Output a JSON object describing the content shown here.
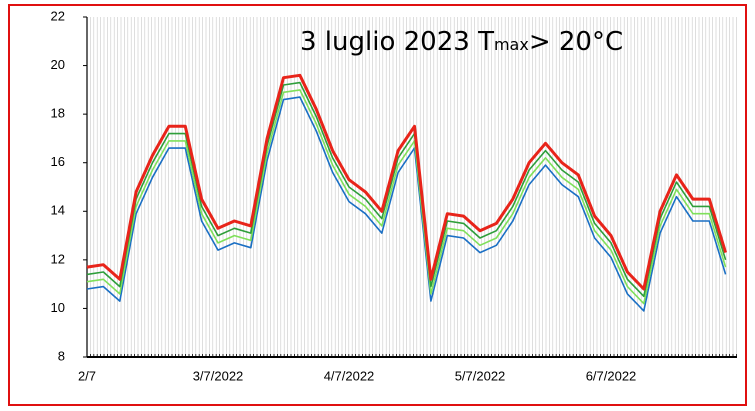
{
  "chart_data": {
    "type": "line",
    "annotation": {
      "parts": [
        "3 luglio 2023 T",
        "max",
        "> 20°C"
      ]
    },
    "categories": [
      "2/7",
      null,
      null,
      null,
      null,
      null,
      null,
      null,
      "3/7/2022",
      null,
      null,
      null,
      null,
      null,
      null,
      null,
      "4/7/2022",
      null,
      null,
      null,
      null,
      null,
      null,
      null,
      "5/7/2022",
      null,
      null,
      null,
      null,
      null,
      null,
      null,
      "6/7/2022",
      null,
      null,
      null,
      null,
      null,
      null,
      null
    ],
    "series": [
      {
        "color": "#1a6fc4",
        "values": [
          10.8,
          10.9,
          10.3,
          13.9,
          15.4,
          16.6,
          16.6,
          13.6,
          12.4,
          12.7,
          12.5,
          16.1,
          18.6,
          18.7,
          17.3,
          15.6,
          14.4,
          13.9,
          13.1,
          15.6,
          16.6,
          10.3,
          13.0,
          12.9,
          12.3,
          12.6,
          13.6,
          15.1,
          15.9,
          15.1,
          14.6,
          12.9,
          12.1,
          10.6,
          9.9,
          13.1,
          14.6,
          13.6,
          13.6,
          11.4
        ]
      },
      {
        "color": "#7fe05a",
        "values": [
          11.1,
          11.2,
          10.6,
          14.2,
          15.7,
          16.9,
          16.9,
          13.9,
          12.7,
          13.0,
          12.8,
          16.4,
          18.9,
          19.0,
          17.6,
          15.9,
          14.7,
          14.2,
          13.4,
          15.9,
          16.9,
          10.6,
          13.3,
          13.2,
          12.6,
          12.9,
          13.9,
          15.4,
          16.2,
          15.4,
          14.9,
          13.2,
          12.4,
          10.9,
          10.2,
          13.4,
          14.9,
          13.9,
          13.9,
          11.7
        ]
      },
      {
        "color": "#2e9e3a",
        "values": [
          11.4,
          11.5,
          10.9,
          14.5,
          16.0,
          17.2,
          17.2,
          14.2,
          13.0,
          13.3,
          13.1,
          16.7,
          19.2,
          19.3,
          17.9,
          16.2,
          15.0,
          14.5,
          13.7,
          16.2,
          17.2,
          10.9,
          13.6,
          13.5,
          12.9,
          13.2,
          14.2,
          15.7,
          16.5,
          15.7,
          15.2,
          13.5,
          12.7,
          11.2,
          10.5,
          13.7,
          15.2,
          14.2,
          14.2,
          12.0
        ]
      },
      {
        "color": "#e8241a",
        "values": [
          11.7,
          11.8,
          11.2,
          14.8,
          16.3,
          17.5,
          17.5,
          14.5,
          13.3,
          13.6,
          13.4,
          17.0,
          19.5,
          19.6,
          18.2,
          16.5,
          15.3,
          14.8,
          14.0,
          16.5,
          17.5,
          11.2,
          13.9,
          13.8,
          13.2,
          13.5,
          14.5,
          16.0,
          16.8,
          16.0,
          15.5,
          13.8,
          13.0,
          11.5,
          10.8,
          14.0,
          15.5,
          14.5,
          14.5,
          12.3
        ]
      }
    ],
    "ylim": [
      8,
      22
    ],
    "yticks": [
      8,
      10,
      12,
      14,
      16,
      18,
      20,
      22
    ]
  }
}
